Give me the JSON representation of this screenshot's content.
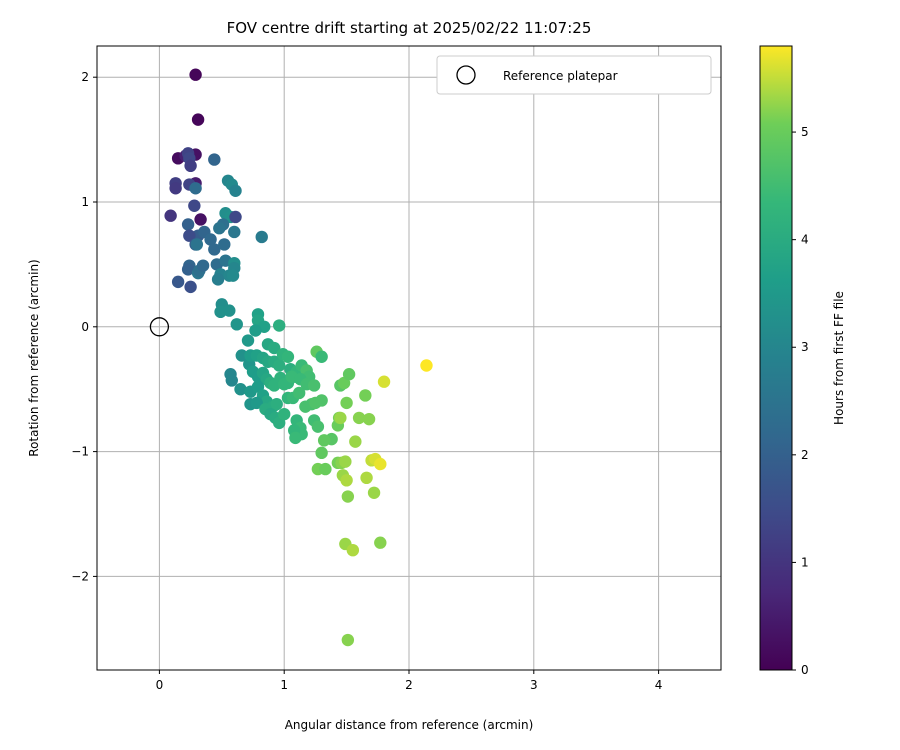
{
  "chart_data": {
    "type": "scatter",
    "title": "FOV centre drift starting at 2025/02/22 11:07:25",
    "xlabel": "Angular distance from reference (arcmin)",
    "ylabel": "Rotation from reference (arcmin)",
    "xlim": [
      -0.5,
      4.5
    ],
    "ylim": [
      -2.75,
      2.25
    ],
    "xticks": [
      0,
      1,
      2,
      3,
      4
    ],
    "yticks": [
      -2,
      -1,
      0,
      1,
      2
    ],
    "xtick_labels": [
      "0",
      "1",
      "2",
      "3",
      "4"
    ],
    "ytick_labels": [
      "−2",
      "−1",
      "0",
      "1",
      "2"
    ],
    "grid": true,
    "colormap": "viridis",
    "colorbar": {
      "label": "Hours from first FF file",
      "range": [
        0,
        5.8
      ],
      "ticks": [
        0,
        1,
        2,
        3,
        4,
        5
      ],
      "tick_labels": [
        "0",
        "1",
        "2",
        "3",
        "4",
        "5"
      ]
    },
    "legend": {
      "position": "top-right",
      "entries": [
        {
          "label": "Reference platepar",
          "marker": "open-circle",
          "color": "#000000"
        }
      ]
    },
    "reference_point": {
      "x": 0,
      "y": 0
    },
    "points": [
      [
        0.29,
        2.02,
        0.1
      ],
      [
        0.31,
        1.66,
        0.1
      ],
      [
        0.15,
        1.35,
        0.2
      ],
      [
        0.29,
        1.38,
        0.3
      ],
      [
        0.21,
        1.37,
        0.6
      ],
      [
        0.23,
        1.39,
        1.3
      ],
      [
        0.24,
        1.35,
        1.4
      ],
      [
        0.25,
        1.29,
        1.2
      ],
      [
        0.13,
        1.15,
        1.2
      ],
      [
        0.13,
        1.11,
        1.1
      ],
      [
        0.29,
        1.15,
        0.5
      ],
      [
        0.24,
        1.14,
        1.3
      ],
      [
        0.29,
        1.11,
        2.3
      ],
      [
        0.28,
        0.97,
        1.4
      ],
      [
        0.33,
        0.86,
        0.3
      ],
      [
        0.09,
        0.89,
        1.0
      ],
      [
        0.23,
        0.82,
        2.0
      ],
      [
        0.31,
        0.73,
        1.9
      ],
      [
        0.36,
        0.76,
        2.1
      ],
      [
        0.24,
        0.73,
        1.5
      ],
      [
        0.29,
        0.66,
        1.9
      ],
      [
        0.44,
        1.34,
        2.1
      ],
      [
        0.55,
        1.17,
        3.0
      ],
      [
        0.58,
        1.14,
        3.1
      ],
      [
        0.61,
        1.09,
        2.9
      ],
      [
        0.53,
        0.91,
        3.2
      ],
      [
        0.57,
        0.88,
        3.3
      ],
      [
        0.61,
        0.88,
        1.4
      ],
      [
        0.51,
        0.82,
        2.4
      ],
      [
        0.6,
        0.76,
        2.6
      ],
      [
        0.48,
        0.79,
        2.5
      ],
      [
        0.41,
        0.7,
        2.2
      ],
      [
        0.44,
        0.62,
        2.2
      ],
      [
        0.52,
        0.66,
        2.3
      ],
      [
        0.3,
        0.66,
        2.5
      ],
      [
        0.24,
        0.49,
        2.1
      ],
      [
        0.23,
        0.46,
        2.0
      ],
      [
        0.31,
        0.43,
        2.6
      ],
      [
        0.32,
        0.45,
        2.4
      ],
      [
        0.35,
        0.49,
        2.2
      ],
      [
        0.46,
        0.5,
        2.3
      ],
      [
        0.53,
        0.53,
        2.5
      ],
      [
        0.49,
        0.42,
        2.9
      ],
      [
        0.56,
        0.41,
        3.0
      ],
      [
        0.6,
        0.51,
        3.2
      ],
      [
        0.6,
        0.47,
        3.0
      ],
      [
        0.59,
        0.41,
        3.1
      ],
      [
        0.47,
        0.38,
        2.8
      ],
      [
        0.82,
        0.72,
        2.7
      ],
      [
        0.15,
        0.36,
        1.8
      ],
      [
        0.25,
        0.32,
        1.6
      ],
      [
        0.5,
        0.18,
        3.2
      ],
      [
        0.49,
        0.12,
        3.3
      ],
      [
        0.56,
        0.13,
        3.3
      ],
      [
        0.62,
        0.02,
        3.4
      ],
      [
        0.79,
        0.1,
        3.7
      ],
      [
        0.79,
        0.05,
        3.8
      ],
      [
        0.84,
        0.0,
        3.7
      ],
      [
        0.71,
        -0.11,
        3.5
      ],
      [
        0.77,
        -0.03,
        3.6
      ],
      [
        0.96,
        0.01,
        4.1
      ],
      [
        0.87,
        -0.14,
        3.9
      ],
      [
        0.92,
        -0.17,
        4.0
      ],
      [
        0.66,
        -0.23,
        3.3
      ],
      [
        0.72,
        -0.3,
        3.4
      ],
      [
        0.73,
        -0.23,
        3.6
      ],
      [
        0.78,
        -0.23,
        3.7
      ],
      [
        0.83,
        -0.25,
        3.8
      ],
      [
        0.87,
        -0.28,
        3.9
      ],
      [
        0.92,
        -0.28,
        4.0
      ],
      [
        0.96,
        -0.31,
        4.1
      ],
      [
        0.99,
        -0.22,
        4.2
      ],
      [
        1.03,
        -0.24,
        4.3
      ],
      [
        1.05,
        -0.34,
        4.1
      ],
      [
        1.08,
        -0.4,
        4.2
      ],
      [
        1.1,
        -0.36,
        4.3
      ],
      [
        1.14,
        -0.31,
        4.4
      ],
      [
        1.18,
        -0.35,
        4.6
      ],
      [
        1.2,
        -0.4,
        4.5
      ],
      [
        1.26,
        -0.2,
        4.9
      ],
      [
        1.3,
        -0.24,
        4.4
      ],
      [
        0.75,
        -0.36,
        3.6
      ],
      [
        0.79,
        -0.4,
        3.6
      ],
      [
        0.83,
        -0.37,
        3.8
      ],
      [
        0.86,
        -0.42,
        3.9
      ],
      [
        0.89,
        -0.45,
        4.1
      ],
      [
        0.92,
        -0.47,
        4.2
      ],
      [
        0.97,
        -0.41,
        4.2
      ],
      [
        1.0,
        -0.46,
        4.3
      ],
      [
        1.03,
        -0.45,
        4.3
      ],
      [
        1.06,
        -0.4,
        4.4
      ],
      [
        1.13,
        -0.42,
        4.4
      ],
      [
        1.18,
        -0.46,
        4.5
      ],
      [
        1.24,
        -0.47,
        4.6
      ],
      [
        0.57,
        -0.38,
        3.0
      ],
      [
        0.58,
        -0.43,
        3.0
      ],
      [
        0.65,
        -0.5,
        3.3
      ],
      [
        0.73,
        -0.52,
        3.5
      ],
      [
        0.79,
        -0.48,
        3.6
      ],
      [
        0.83,
        -0.55,
        3.7
      ],
      [
        0.86,
        -0.6,
        3.9
      ],
      [
        0.91,
        -0.64,
        4.0
      ],
      [
        0.94,
        -0.62,
        4.1
      ],
      [
        0.73,
        -0.62,
        3.4
      ],
      [
        0.78,
        -0.61,
        3.5
      ],
      [
        0.85,
        -0.66,
        4.0
      ],
      [
        0.89,
        -0.7,
        3.9
      ],
      [
        0.93,
        -0.73,
        4.0
      ],
      [
        0.96,
        -0.77,
        4.1
      ],
      [
        1.0,
        -0.7,
        4.2
      ],
      [
        1.03,
        -0.57,
        4.3
      ],
      [
        1.07,
        -0.57,
        4.4
      ],
      [
        1.12,
        -0.53,
        4.5
      ],
      [
        1.17,
        -0.64,
        4.6
      ],
      [
        1.22,
        -0.62,
        4.6
      ],
      [
        1.25,
        -0.61,
        4.7
      ],
      [
        1.3,
        -0.59,
        4.7
      ],
      [
        1.24,
        -0.75,
        4.5
      ],
      [
        1.27,
        -0.8,
        4.6
      ],
      [
        1.1,
        -0.75,
        4.3
      ],
      [
        1.13,
        -0.81,
        4.4
      ],
      [
        1.14,
        -0.86,
        4.4
      ],
      [
        1.08,
        -0.83,
        4.3
      ],
      [
        1.09,
        -0.89,
        4.4
      ],
      [
        1.38,
        -0.9,
        4.8
      ],
      [
        1.32,
        -0.91,
        4.9
      ],
      [
        1.3,
        -1.01,
        4.9
      ],
      [
        1.27,
        -1.14,
        5.1
      ],
      [
        1.33,
        -1.14,
        5.0
      ],
      [
        1.43,
        -0.79,
        5.0
      ],
      [
        1.44,
        -0.73,
        5.1
      ],
      [
        1.45,
        -0.73,
        5.3
      ],
      [
        1.45,
        -0.47,
        4.8
      ],
      [
        1.48,
        -0.45,
        5.0
      ],
      [
        1.52,
        -0.38,
        4.9
      ],
      [
        1.5,
        -0.61,
        5.1
      ],
      [
        1.6,
        -0.73,
        5.2
      ],
      [
        1.65,
        -0.55,
        5.1
      ],
      [
        1.68,
        -0.74,
        5.2
      ],
      [
        1.57,
        -0.92,
        5.3
      ],
      [
        1.43,
        -1.09,
        5.1
      ],
      [
        1.46,
        -1.09,
        5.2
      ],
      [
        1.49,
        -1.08,
        5.3
      ],
      [
        1.47,
        -1.19,
        5.3
      ],
      [
        1.5,
        -1.23,
        5.4
      ],
      [
        1.51,
        -1.36,
        5.2
      ],
      [
        1.66,
        -1.21,
        5.4
      ],
      [
        1.7,
        -1.07,
        5.5
      ],
      [
        1.73,
        -1.06,
        5.6
      ],
      [
        1.77,
        -1.1,
        5.7
      ],
      [
        1.72,
        -1.33,
        5.3
      ],
      [
        1.49,
        -1.74,
        5.3
      ],
      [
        1.55,
        -1.79,
        5.4
      ],
      [
        1.77,
        -1.73,
        5.2
      ],
      [
        1.8,
        -0.44,
        5.6
      ],
      [
        2.14,
        -0.31,
        5.8
      ],
      [
        1.51,
        -2.51,
        5.2
      ]
    ]
  }
}
